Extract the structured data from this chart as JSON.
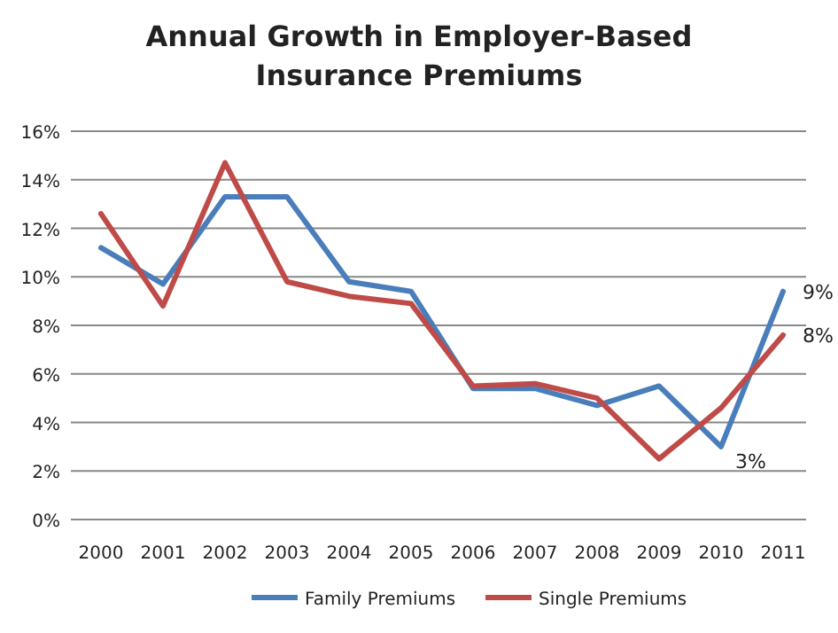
{
  "chart_data": {
    "type": "line",
    "title": "Annual Growth in Employer-Based Insurance Premiums",
    "categories": [
      "2000",
      "2001",
      "2002",
      "2003",
      "2004",
      "2005",
      "2006",
      "2007",
      "2008",
      "2009",
      "2010",
      "2011"
    ],
    "series": [
      {
        "name": "Family Premiums",
        "color": "#4a7ebb",
        "values": [
          11.2,
          9.7,
          13.3,
          13.3,
          9.8,
          9.4,
          5.4,
          5.4,
          4.7,
          5.5,
          3.0,
          9.4
        ],
        "value_labels": [
          null,
          null,
          null,
          null,
          null,
          null,
          null,
          null,
          null,
          null,
          "3%",
          "9%"
        ]
      },
      {
        "name": "Single Premiums",
        "color": "#be4b48",
        "values": [
          12.6,
          8.8,
          14.7,
          9.8,
          9.2,
          8.9,
          5.5,
          5.6,
          5.0,
          2.5,
          4.6,
          7.6
        ],
        "value_labels": [
          null,
          null,
          null,
          null,
          null,
          null,
          null,
          null,
          null,
          null,
          null,
          "8%"
        ]
      }
    ],
    "ylim": [
      0,
      16
    ],
    "yticks": [
      {
        "value": 0,
        "label": "0%"
      },
      {
        "value": 2,
        "label": "2%"
      },
      {
        "value": 4,
        "label": "4%"
      },
      {
        "value": 6,
        "label": "6%"
      },
      {
        "value": 8,
        "label": "8%"
      },
      {
        "value": 10,
        "label": "10%"
      },
      {
        "value": 12,
        "label": "12%"
      },
      {
        "value": 14,
        "label": "14%"
      },
      {
        "value": 16,
        "label": "16%"
      }
    ],
    "grid": "y",
    "legend": "bottom",
    "marker": "none",
    "line_style": "solid"
  }
}
